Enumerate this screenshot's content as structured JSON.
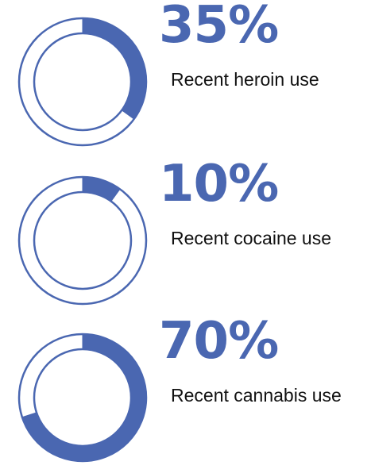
{
  "chart_data": [
    {
      "type": "pie",
      "value": 35,
      "value_label": "35%",
      "label": "Recent heroin use"
    },
    {
      "type": "pie",
      "value": 10,
      "value_label": "10%",
      "label": "Recent cocaine use"
    },
    {
      "type": "pie",
      "value": 70,
      "value_label": "70%",
      "label": "Recent cannabis use"
    }
  ],
  "colors": {
    "accent": "#4a67b1",
    "outline": "#4a67b1",
    "background": "#ffffff",
    "text": "#111111"
  }
}
